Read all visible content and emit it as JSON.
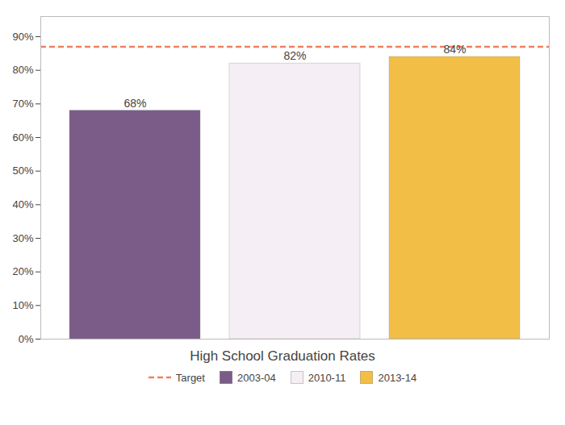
{
  "chart_data": {
    "type": "bar",
    "title": "High School Graduation Rates",
    "categories": [
      "2003-04",
      "2010-11",
      "2013-14"
    ],
    "values": [
      68,
      82,
      84
    ],
    "value_labels": [
      "68%",
      "82%",
      "84%"
    ],
    "data_labels": true,
    "colors": [
      "#7B5B88",
      "#F5EEF5",
      "#F2BE45"
    ],
    "ylim": [
      0,
      96
    ],
    "yticks": [
      {
        "value": 0,
        "label": "0%"
      },
      {
        "value": 10,
        "label": "10%"
      },
      {
        "value": 20,
        "label": "20%"
      },
      {
        "value": 30,
        "label": "30%"
      },
      {
        "value": 40,
        "label": "40%"
      },
      {
        "value": 50,
        "label": "50%"
      },
      {
        "value": 60,
        "label": "60%"
      },
      {
        "value": 70,
        "label": "70%"
      },
      {
        "value": 80,
        "label": "80%"
      },
      {
        "value": 90,
        "label": "90%"
      }
    ],
    "tick_labels": "y",
    "grid": false,
    "legend": "bottom",
    "target": {
      "value": 87,
      "label": "Target",
      "color": "#F08060",
      "line_style": "dashed"
    }
  }
}
